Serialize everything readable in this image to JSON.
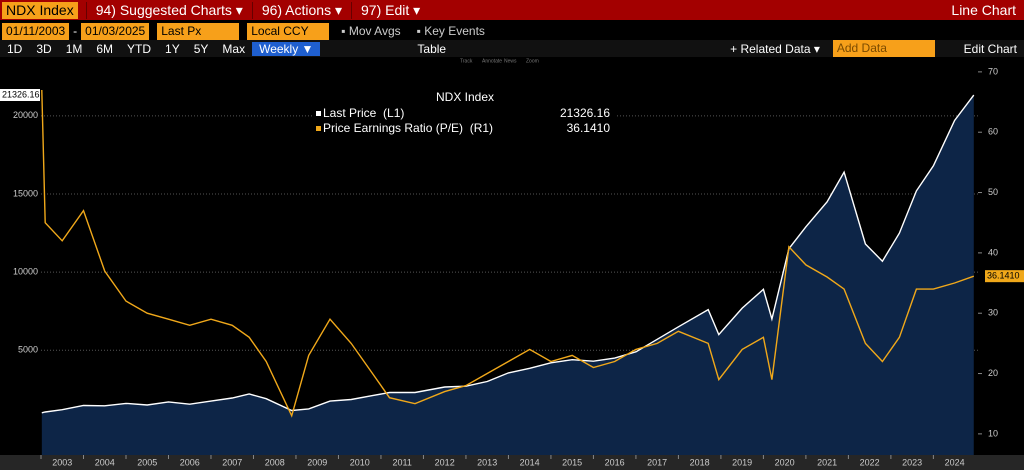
{
  "toolbar": {
    "security": "NDX Index",
    "menus": [
      "94) Suggested Charts ▾",
      "96) Actions ▾",
      "97) Edit ▾"
    ],
    "view": "Line Chart",
    "start": "01/11/2003",
    "dash": "-",
    "end": "01/03/2025",
    "field": "Last Px",
    "currency": "Local CCY",
    "options": [
      "Mov Avgs",
      "Key Events"
    ],
    "periods": [
      "1D",
      "3D",
      "1M",
      "6M",
      "YTD",
      "1Y",
      "5Y",
      "Max"
    ],
    "frequency": "Weekly ▼",
    "table": "Table",
    "related": "+ Related Data ▾",
    "add": "Add Data",
    "edit": "Edit Chart",
    "tools": [
      "Track",
      "Annotate",
      "News",
      "Zoom"
    ]
  },
  "chart_data": {
    "type": "line",
    "legend_title": "NDX Index",
    "x": [
      2003.02,
      2003.1,
      2003.5,
      2004.0,
      2004.5,
      2005.0,
      2005.5,
      2006.0,
      2006.5,
      2007.0,
      2007.5,
      2007.9,
      2008.3,
      2008.9,
      2009.3,
      2009.8,
      2010.3,
      2010.8,
      2011.2,
      2011.8,
      2012.5,
      2013.0,
      2013.5,
      2014.0,
      2014.5,
      2015.0,
      2015.5,
      2016.0,
      2016.5,
      2017.0,
      2017.5,
      2018.0,
      2018.7,
      2018.95,
      2019.5,
      2020.0,
      2020.2,
      2020.6,
      2021.0,
      2021.5,
      2021.9,
      2022.4,
      2022.8,
      2023.2,
      2023.6,
      2024.0,
      2024.5,
      2024.95
    ],
    "series": [
      {
        "name": "Last Price  (L1)",
        "color": "#ffffff",
        "fill": "#0d2547",
        "last_label": "21326.16",
        "values": [
          1000,
          1050,
          1200,
          1470,
          1450,
          1600,
          1500,
          1700,
          1550,
          1750,
          1950,
          2200,
          1900,
          1150,
          1250,
          1750,
          1850,
          2100,
          2300,
          2300,
          2650,
          2700,
          3000,
          3550,
          3850,
          4200,
          4400,
          4300,
          4500,
          4900,
          5700,
          6500,
          7600,
          6000,
          7700,
          8900,
          7000,
          11500,
          12900,
          14500,
          16400,
          11800,
          10700,
          12500,
          15200,
          16800,
          19700,
          21326.16
        ]
      },
      {
        "name": "Price Earnings Ratio (P/E)  (R1)",
        "color": "#f0a81a",
        "axis": "y2",
        "last_label": "36.1410",
        "values": [
          67,
          45,
          42,
          47,
          37,
          32,
          30,
          29,
          28,
          29,
          28,
          26,
          22,
          13,
          23,
          29,
          25,
          20,
          16,
          15,
          17,
          18,
          20,
          22,
          24,
          22,
          23,
          21,
          22,
          24,
          25,
          27,
          25,
          19,
          24,
          26,
          19,
          41,
          38,
          36,
          34,
          25,
          22,
          26,
          34,
          34,
          35,
          36.141
        ]
      }
    ],
    "xlim": [
      2003,
      2025.05
    ],
    "xticks": [
      2003,
      2004,
      2005,
      2006,
      2007,
      2008,
      2009,
      2010,
      2011,
      2012,
      2013,
      2014,
      2015,
      2016,
      2017,
      2018,
      2019,
      2020,
      2021,
      2022,
      2023,
      2024
    ],
    "ylim": [
      -1700,
      23700
    ],
    "yticks": [
      5000,
      10000,
      15000,
      20000
    ],
    "y2lim": [
      6.5,
      72.3
    ],
    "y2ticks": [
      10,
      20,
      30,
      40,
      50,
      60,
      70
    ],
    "grid": true
  }
}
